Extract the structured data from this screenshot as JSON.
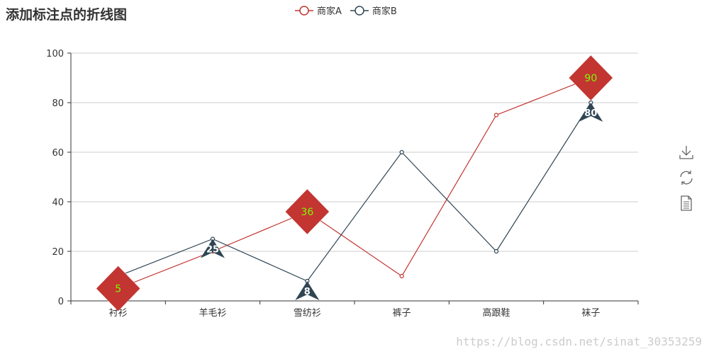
{
  "chart_data": {
    "type": "line",
    "title": "添加标注点的折线图",
    "categories": [
      "衬衫",
      "羊毛衫",
      "雪纺衫",
      "裤子",
      "高跟鞋",
      "袜子"
    ],
    "ylim": [
      0,
      100
    ],
    "yticks": [
      0,
      20,
      40,
      60,
      80,
      100
    ],
    "grid": true,
    "legend_position": "top-center",
    "series": [
      {
        "name": "商家A",
        "color": "#c23531",
        "values": [
          5,
          20,
          36,
          10,
          75,
          90
        ],
        "mark_points": [
          {
            "index": 0,
            "label": "5"
          },
          {
            "index": 2,
            "label": "36"
          },
          {
            "index": 5,
            "label": "90"
          }
        ],
        "mark_shape": "diamond"
      },
      {
        "name": "商家B",
        "color": "#2f4554",
        "values": [
          10,
          25,
          8,
          60,
          20,
          80
        ],
        "mark_points": [
          {
            "index": 1,
            "label": "25"
          },
          {
            "index": 2,
            "label": "8"
          },
          {
            "index": 5,
            "label": "80"
          }
        ],
        "mark_shape": "arrow"
      }
    ]
  },
  "toolbox": {
    "icons": [
      "download-icon",
      "refresh-icon",
      "data-view-icon"
    ]
  },
  "watermark": "https://blog.csdn.net/sinat_30353259"
}
